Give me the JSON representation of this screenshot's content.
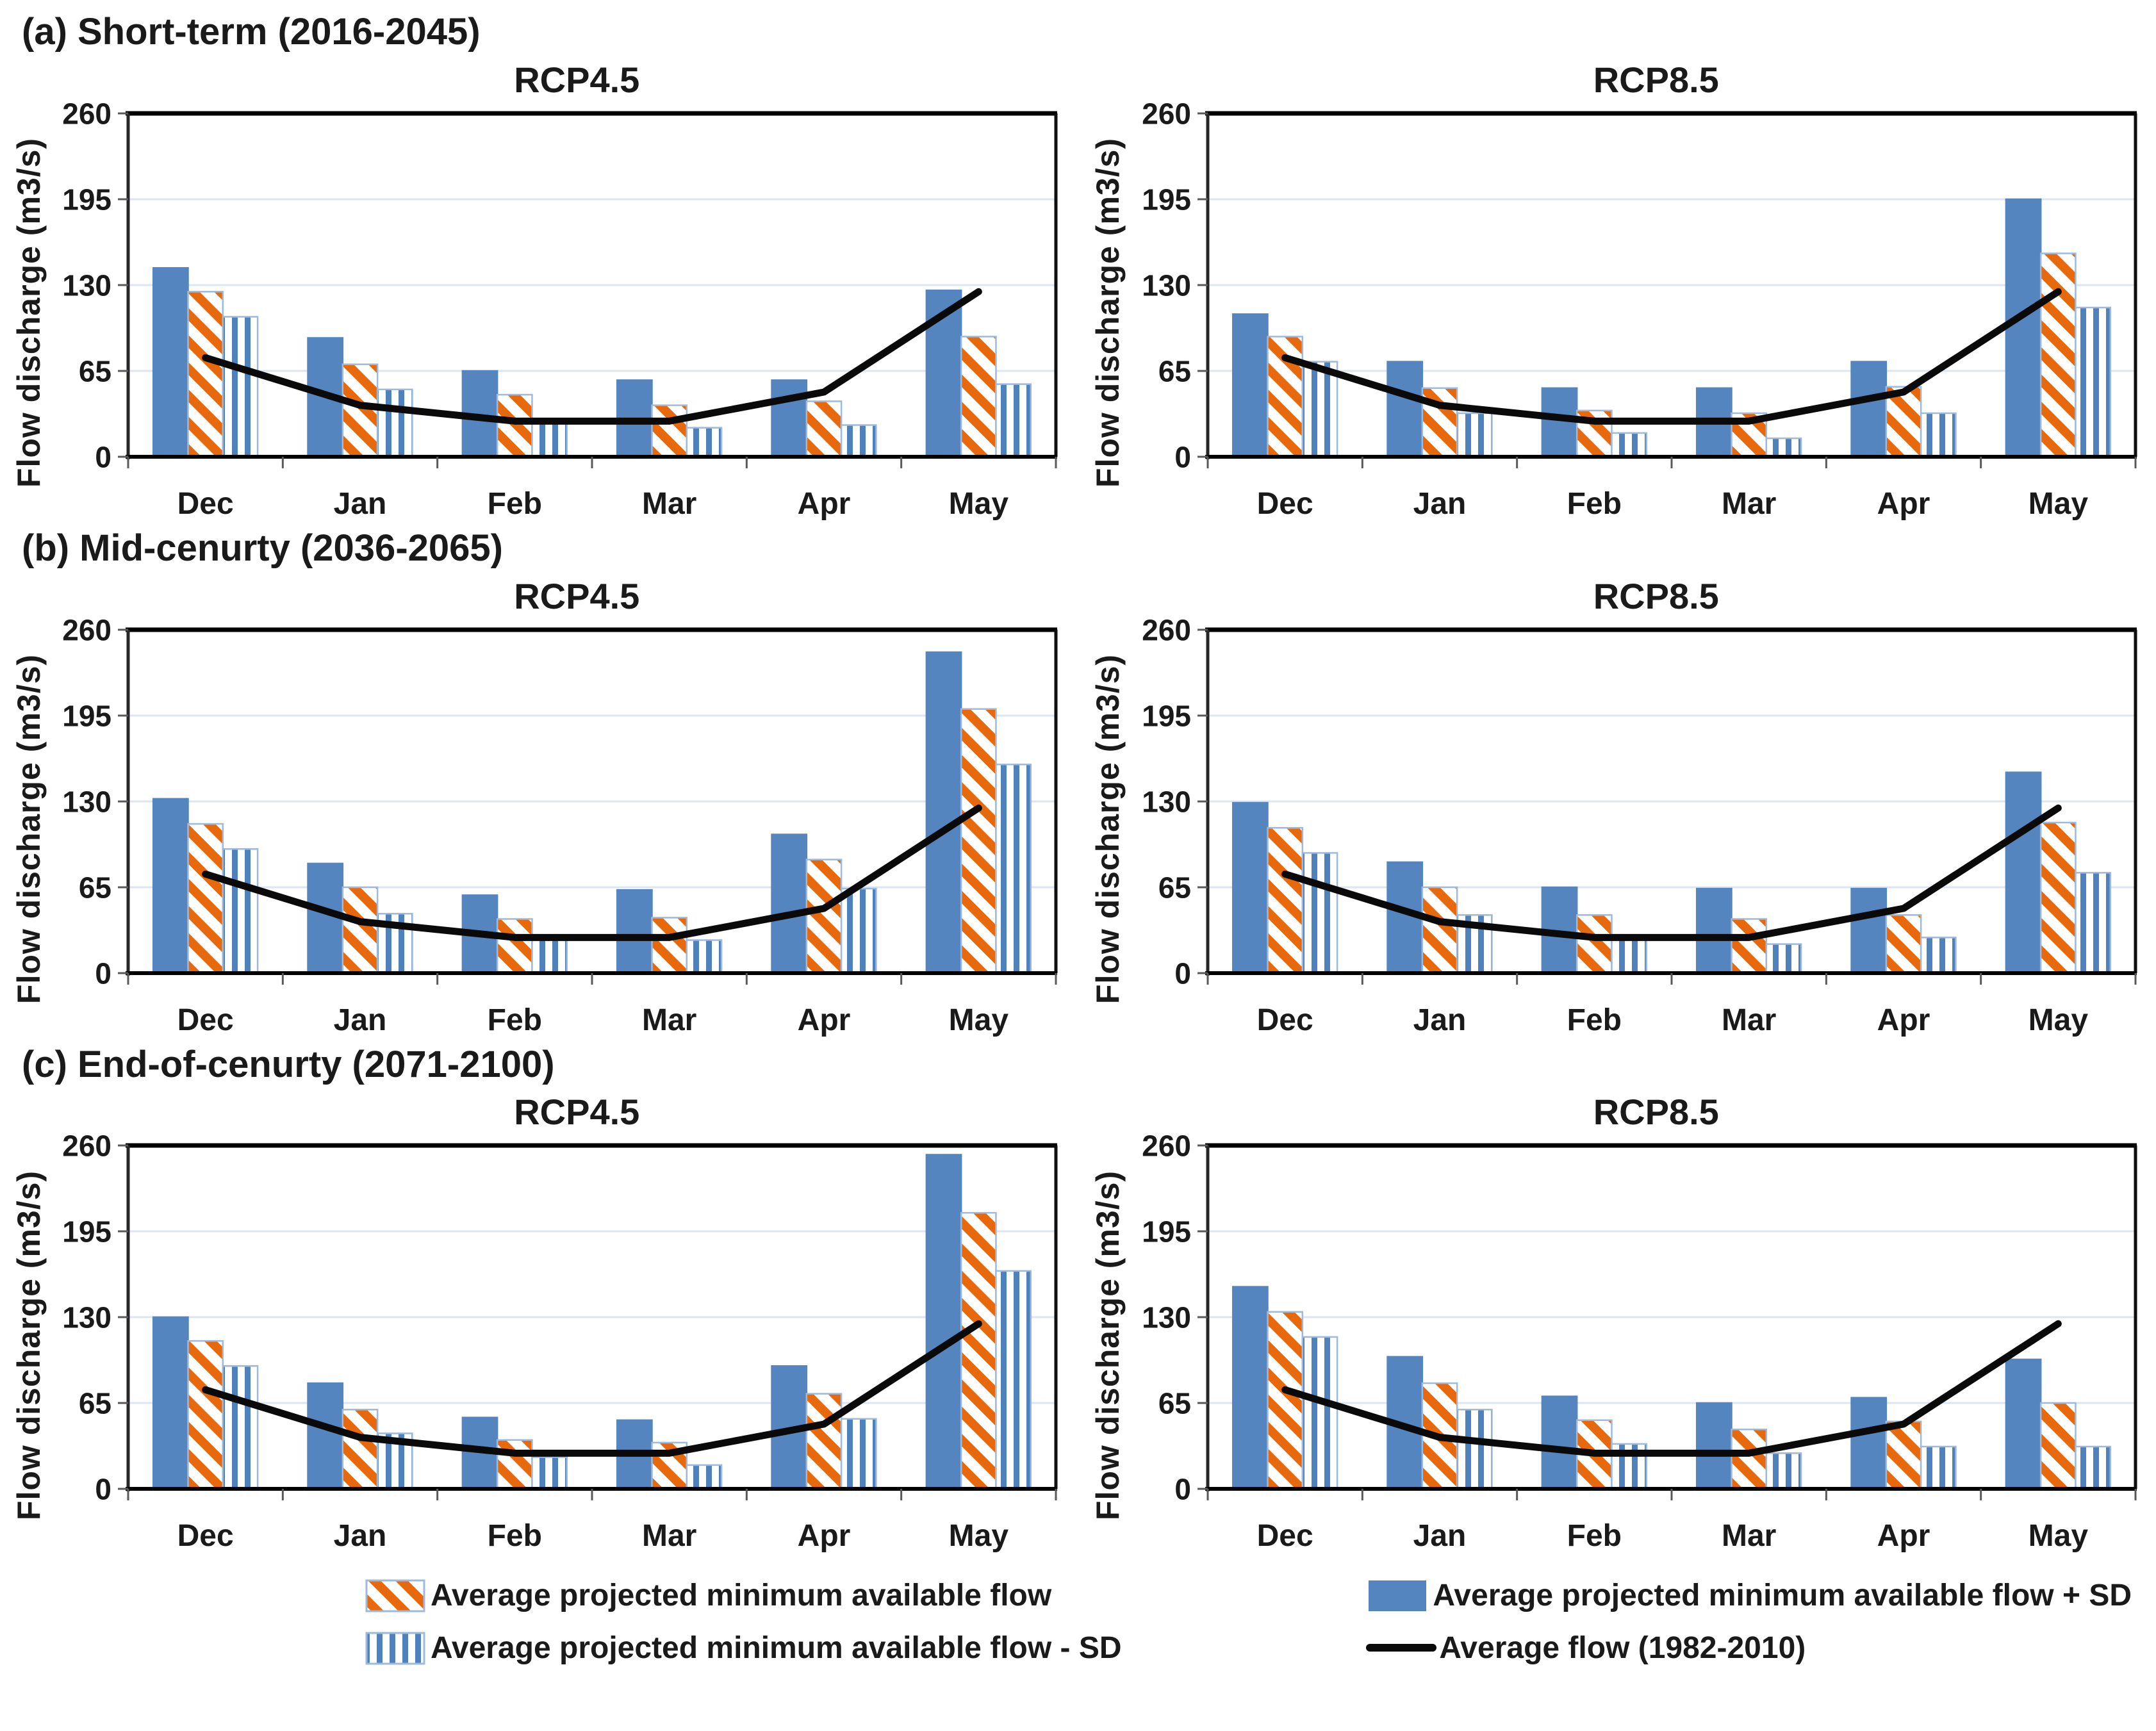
{
  "colors": {
    "bar_blue": "#5585BE",
    "bar_border": "#9DB9DC",
    "hatch_orange": "#E8690B",
    "stripe_blue": "#4F81BD",
    "line_black": "#0A0A0A",
    "grid": "#DCE5F2",
    "axis_dark": "#262626",
    "text": "#1A1A1A"
  },
  "sections": [
    {
      "label": "(a) Short-term (2016-2045)"
    },
    {
      "label": "(b) Mid-cenurty (2036-2065)"
    },
    {
      "label": "(c) End-of-cenurty (2071-2100)"
    }
  ],
  "legend": {
    "items": [
      {
        "swatch": "orange-hatch",
        "label": "Average projected minimum available flow"
      },
      {
        "swatch": "solid-blue",
        "label": "Average projected minimum available flow + SD"
      },
      {
        "swatch": "blue-stripe",
        "label": "Average projected minimum available flow - SD"
      },
      {
        "swatch": "black-line",
        "label": "Average flow (1982-2010)"
      }
    ]
  },
  "chart_data": [
    {
      "type": "bar",
      "section": "(a) Short-term (2016-2045)",
      "title": "RCP4.5",
      "ylabel": "Flow discharge (m3/s)",
      "xlabel": "",
      "ylim": [
        0,
        260
      ],
      "yticks": [
        0,
        65,
        130,
        195,
        260
      ],
      "grid": true,
      "legend_position": "bottom",
      "categories": [
        "Dec",
        "Jan",
        "Feb",
        "Mar",
        "Apr",
        "May"
      ],
      "series": [
        {
          "name": "Average projected minimum available flow + SD",
          "style": "solid-blue",
          "values": [
            143,
            90,
            65,
            58,
            58,
            126
          ]
        },
        {
          "name": "Average projected minimum available flow",
          "style": "orange-hatch",
          "values": [
            125,
            70,
            47,
            39,
            42,
            91
          ]
        },
        {
          "name": "Average projected minimum available flow - SD",
          "style": "blue-stripe",
          "values": [
            106,
            51,
            26,
            22,
            24,
            55
          ]
        }
      ],
      "line": {
        "name": "Average flow (1982-2010)",
        "values": [
          75,
          39,
          27,
          27,
          49,
          125
        ]
      }
    },
    {
      "type": "bar",
      "section": "(a) Short-term (2016-2045)",
      "title": "RCP8.5",
      "ylabel": "Flow discharge (m3/s)",
      "xlabel": "",
      "ylim": [
        0,
        260
      ],
      "yticks": [
        0,
        65,
        130,
        195,
        260
      ],
      "grid": true,
      "categories": [
        "Dec",
        "Jan",
        "Feb",
        "Mar",
        "Apr",
        "May"
      ],
      "series": [
        {
          "name": "Average projected minimum available flow + SD",
          "style": "solid-blue",
          "values": [
            108,
            72,
            52,
            52,
            72,
            195
          ]
        },
        {
          "name": "Average projected minimum available flow",
          "style": "orange-hatch",
          "values": [
            91,
            52,
            35,
            33,
            53,
            154
          ]
        },
        {
          "name": "Average projected minimum available flow - SD",
          "style": "blue-stripe",
          "values": [
            72,
            33,
            18,
            14,
            33,
            113
          ]
        }
      ],
      "line": {
        "name": "Average flow (1982-2010)",
        "values": [
          75,
          39,
          27,
          27,
          49,
          125
        ]
      }
    },
    {
      "type": "bar",
      "section": "(b) Mid-cenurty (2036-2065)",
      "title": "RCP4.5",
      "ylabel": "Flow discharge (m3/s)",
      "xlabel": "",
      "ylim": [
        0,
        260
      ],
      "yticks": [
        0,
        65,
        130,
        195,
        260
      ],
      "grid": true,
      "categories": [
        "Dec",
        "Jan",
        "Feb",
        "Mar",
        "Apr",
        "May"
      ],
      "series": [
        {
          "name": "Average projected minimum available flow + SD",
          "style": "solid-blue",
          "values": [
            132,
            83,
            59,
            63,
            105,
            243
          ]
        },
        {
          "name": "Average projected minimum available flow",
          "style": "orange-hatch",
          "values": [
            113,
            65,
            41,
            42,
            86,
            200
          ]
        },
        {
          "name": "Average projected minimum available flow - SD",
          "style": "blue-stripe",
          "values": [
            94,
            45,
            27,
            25,
            64,
            158
          ]
        }
      ],
      "line": {
        "name": "Average flow (1982-2010)",
        "values": [
          75,
          39,
          27,
          27,
          49,
          125
        ]
      }
    },
    {
      "type": "bar",
      "section": "(b) Mid-cenurty (2036-2065)",
      "title": "RCP8.5",
      "ylabel": "Flow discharge (m3/s)",
      "xlabel": "",
      "ylim": [
        0,
        260
      ],
      "yticks": [
        0,
        65,
        130,
        195,
        260
      ],
      "grid": true,
      "categories": [
        "Dec",
        "Jan",
        "Feb",
        "Mar",
        "Apr",
        "May"
      ],
      "series": [
        {
          "name": "Average projected minimum available flow + SD",
          "style": "solid-blue",
          "values": [
            129,
            84,
            65,
            64,
            64,
            152
          ]
        },
        {
          "name": "Average projected minimum available flow",
          "style": "orange-hatch",
          "values": [
            110,
            65,
            44,
            41,
            44,
            114
          ]
        },
        {
          "name": "Average projected minimum available flow - SD",
          "style": "blue-stripe",
          "values": [
            91,
            44,
            27,
            22,
            27,
            76
          ]
        }
      ],
      "line": {
        "name": "Average flow (1982-2010)",
        "values": [
          75,
          39,
          27,
          27,
          49,
          125
        ]
      }
    },
    {
      "type": "bar",
      "section": "(c) End-of-cenurty (2071-2100)",
      "title": "RCP4.5",
      "ylabel": "Flow discharge (m3/s)",
      "xlabel": "",
      "ylim": [
        0,
        260
      ],
      "yticks": [
        0,
        65,
        130,
        195,
        260
      ],
      "grid": true,
      "categories": [
        "Dec",
        "Jan",
        "Feb",
        "Mar",
        "Apr",
        "May"
      ],
      "series": [
        {
          "name": "Average projected minimum available flow + SD",
          "style": "solid-blue",
          "values": [
            130,
            80,
            54,
            52,
            93,
            253
          ]
        },
        {
          "name": "Average projected minimum available flow",
          "style": "orange-hatch",
          "values": [
            112,
            60,
            37,
            35,
            72,
            209
          ]
        },
        {
          "name": "Average projected minimum available flow - SD",
          "style": "blue-stripe",
          "values": [
            93,
            42,
            24,
            18,
            53,
            165
          ]
        }
      ],
      "line": {
        "name": "Average flow (1982-2010)",
        "values": [
          75,
          39,
          27,
          27,
          49,
          125
        ]
      }
    },
    {
      "type": "bar",
      "section": "(c) End-of-cenurty (2071-2100)",
      "title": "RCP8.5",
      "ylabel": "Flow discharge (m3/s)",
      "xlabel": "",
      "ylim": [
        0,
        260
      ],
      "yticks": [
        0,
        65,
        130,
        195,
        260
      ],
      "grid": true,
      "categories": [
        "Dec",
        "Jan",
        "Feb",
        "Mar",
        "Apr",
        "May"
      ],
      "series": [
        {
          "name": "Average projected minimum available flow + SD",
          "style": "solid-blue",
          "values": [
            153,
            100,
            70,
            65,
            69,
            98
          ]
        },
        {
          "name": "Average projected minimum available flow",
          "style": "orange-hatch",
          "values": [
            134,
            80,
            52,
            45,
            51,
            65
          ]
        },
        {
          "name": "Average projected minimum available flow - SD",
          "style": "blue-stripe",
          "values": [
            115,
            60,
            34,
            27,
            32,
            32
          ]
        }
      ],
      "line": {
        "name": "Average flow (1982-2010)",
        "values": [
          75,
          39,
          27,
          27,
          49,
          125
        ]
      }
    }
  ]
}
